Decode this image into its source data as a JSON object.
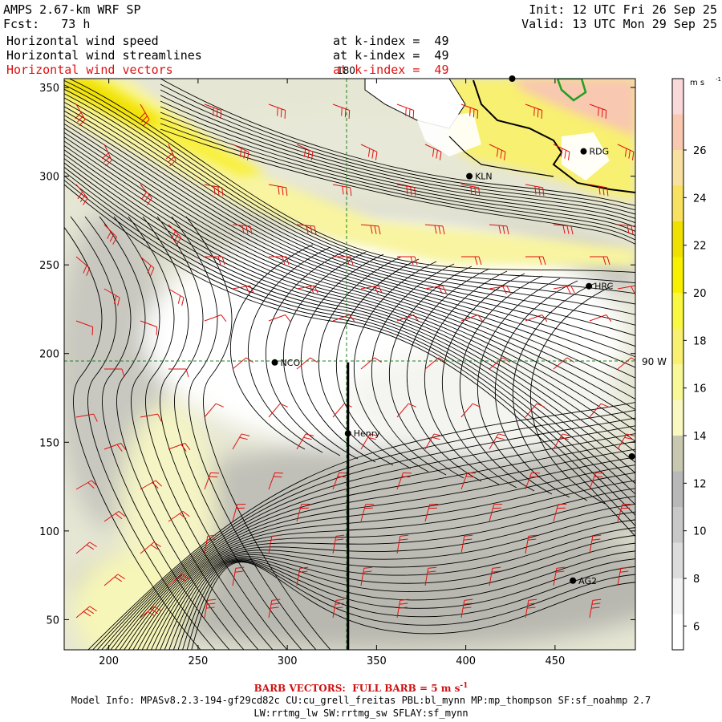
{
  "header": {
    "model": "AMPS 2.67-km WRF SP",
    "fcst_label": "Fcst:",
    "fcst_hours": "73 h",
    "init": "Init: 12 UTC Fri 26 Sep 25",
    "valid": "Valid: 13 UTC Mon 29 Sep 25",
    "fields": [
      {
        "name": "Horizontal wind speed",
        "level": "at k-index =  49",
        "color": "#000000"
      },
      {
        "name": "Horizontal wind streamlines",
        "level": "at k-index =  49",
        "color": "#000000"
      },
      {
        "name": "Horizontal wind vectors",
        "level": "at k-index =  49",
        "color": "#e01010"
      }
    ]
  },
  "chart_data": {
    "type": "heatmap",
    "title": "Horizontal wind speed, streamlines and vectors at k-index = 49",
    "x_ticks": [
      200,
      250,
      300,
      350,
      400,
      450
    ],
    "y_ticks": [
      50,
      100,
      150,
      200,
      250,
      300,
      350
    ],
    "xlim": [
      175,
      495
    ],
    "ylim": [
      33,
      355
    ],
    "gridlines": {
      "meridian_180": {
        "label": "180",
        "x": 335
      },
      "meridian_90W": {
        "label": "90 W",
        "y": 195
      }
    },
    "colorbar": {
      "unit": "m s",
      "unit_exp": "-1",
      "levels": [
        6,
        8,
        10,
        12,
        14,
        16,
        18,
        20,
        22,
        24,
        26
      ],
      "range": [
        5,
        29
      ],
      "colors": [
        "#ffffff",
        "#f2f2f2",
        "#dcdcdc",
        "#c8c8c8",
        "#b8b8b8",
        "#c8c8b0",
        "#f8f8c0",
        "#f8f898",
        "#f8f070",
        "#f8f840",
        "#f8f000",
        "#f0e000",
        "#f8e060",
        "#f8e0a0",
        "#f8c8b0",
        "#f8d8d8"
      ]
    },
    "stations": [
      {
        "name": "NCO",
        "x": 293,
        "y": 195
      },
      {
        "name": "Henry",
        "x": 334,
        "y": 155
      },
      {
        "name": "KLN",
        "x": 402,
        "y": 300
      },
      {
        "name": "RDG",
        "x": 466,
        "y": 314
      },
      {
        "name": "HRC",
        "x": 469,
        "y": 238
      },
      {
        "name": "AG2",
        "x": 460,
        "y": 72
      },
      {
        "name": "",
        "x": 426,
        "y": 355
      },
      {
        "name": "",
        "x": 493,
        "y": 142
      }
    ],
    "section_line": {
      "x": 334,
      "y0": 33,
      "y1": 195
    }
  },
  "footer": {
    "barb_label": "BARB VECTORS:  FULL BARB = 5 m s",
    "barb_exp": "-1",
    "model_info_1": "Model Info: MPASv8.2.3-194-gf29cd82c CU:cu_grell_freitas PBL:bl_mynn MP:mp_thompson SF:sf_noahmp 2.7",
    "model_info_2": "LW:rrtmg_lw SW:rrtmg_sw SFLAY:sf_mynn"
  }
}
